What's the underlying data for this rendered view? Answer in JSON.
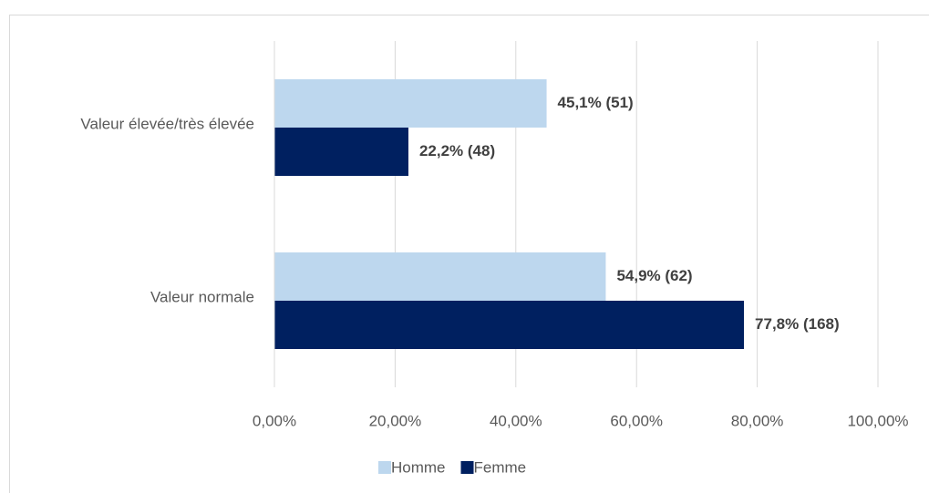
{
  "chart_data": {
    "type": "bar",
    "orientation": "horizontal",
    "categories": [
      "Valeur élevée/très élevée",
      "Valeur normale"
    ],
    "series": [
      {
        "name": "Homme",
        "color": "#bdd7ee",
        "values": [
          45.1,
          54.9
        ],
        "value_labels": [
          "45,1% (51)",
          "54,9% (62)"
        ]
      },
      {
        "name": "Femme",
        "color": "#002060",
        "values": [
          22.2,
          77.8
        ],
        "value_labels": [
          "22,2% (48)",
          "77,8% (168)"
        ]
      }
    ],
    "xlim": [
      0,
      100
    ],
    "xticks": [
      {
        "value": 0,
        "label": "0,00%"
      },
      {
        "value": 20,
        "label": "20,00%"
      },
      {
        "value": 40,
        "label": "40,00%"
      },
      {
        "value": 60,
        "label": "60,00%"
      },
      {
        "value": 80,
        "label": "80,00%"
      },
      {
        "value": 100,
        "label": "100,00%"
      }
    ],
    "grid": true,
    "legend": "bottom"
  }
}
